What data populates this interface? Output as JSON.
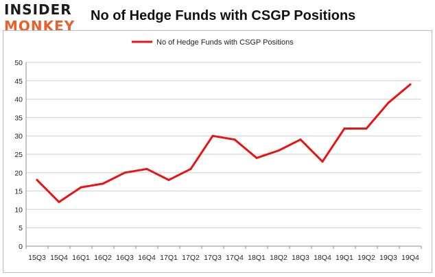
{
  "header": {
    "logo_top": "INSIDER",
    "logo_bottom": "MONKEY",
    "title": "No of Hedge Funds with CSGP Positions"
  },
  "colors": {
    "line": "#ee1111",
    "grid": "#cfcfcf",
    "logo_accent": "#e8612c"
  },
  "chart_data": {
    "type": "line",
    "title": "No of Hedge Funds with CSGP Positions",
    "xlabel": "",
    "ylabel": "",
    "categories": [
      "15Q3",
      "15Q4",
      "16Q1",
      "16Q2",
      "16Q3",
      "16Q4",
      "17Q1",
      "17Q2",
      "17Q3",
      "17Q4",
      "18Q1",
      "18Q2",
      "18Q3",
      "18Q4",
      "19Q1",
      "19Q2",
      "19Q3",
      "19Q4"
    ],
    "series": [
      {
        "name": "No of Hedge Funds with CSGP Positions",
        "values": [
          18,
          12,
          16,
          17,
          20,
          21,
          18,
          21,
          30,
          29,
          24,
          26,
          29,
          23,
          32,
          32,
          39,
          44
        ]
      }
    ],
    "ylim": [
      0,
      50
    ],
    "yticks": [
      0,
      5,
      10,
      15,
      20,
      25,
      30,
      35,
      40,
      45,
      50
    ],
    "grid": true,
    "legend_position": "top-center"
  }
}
